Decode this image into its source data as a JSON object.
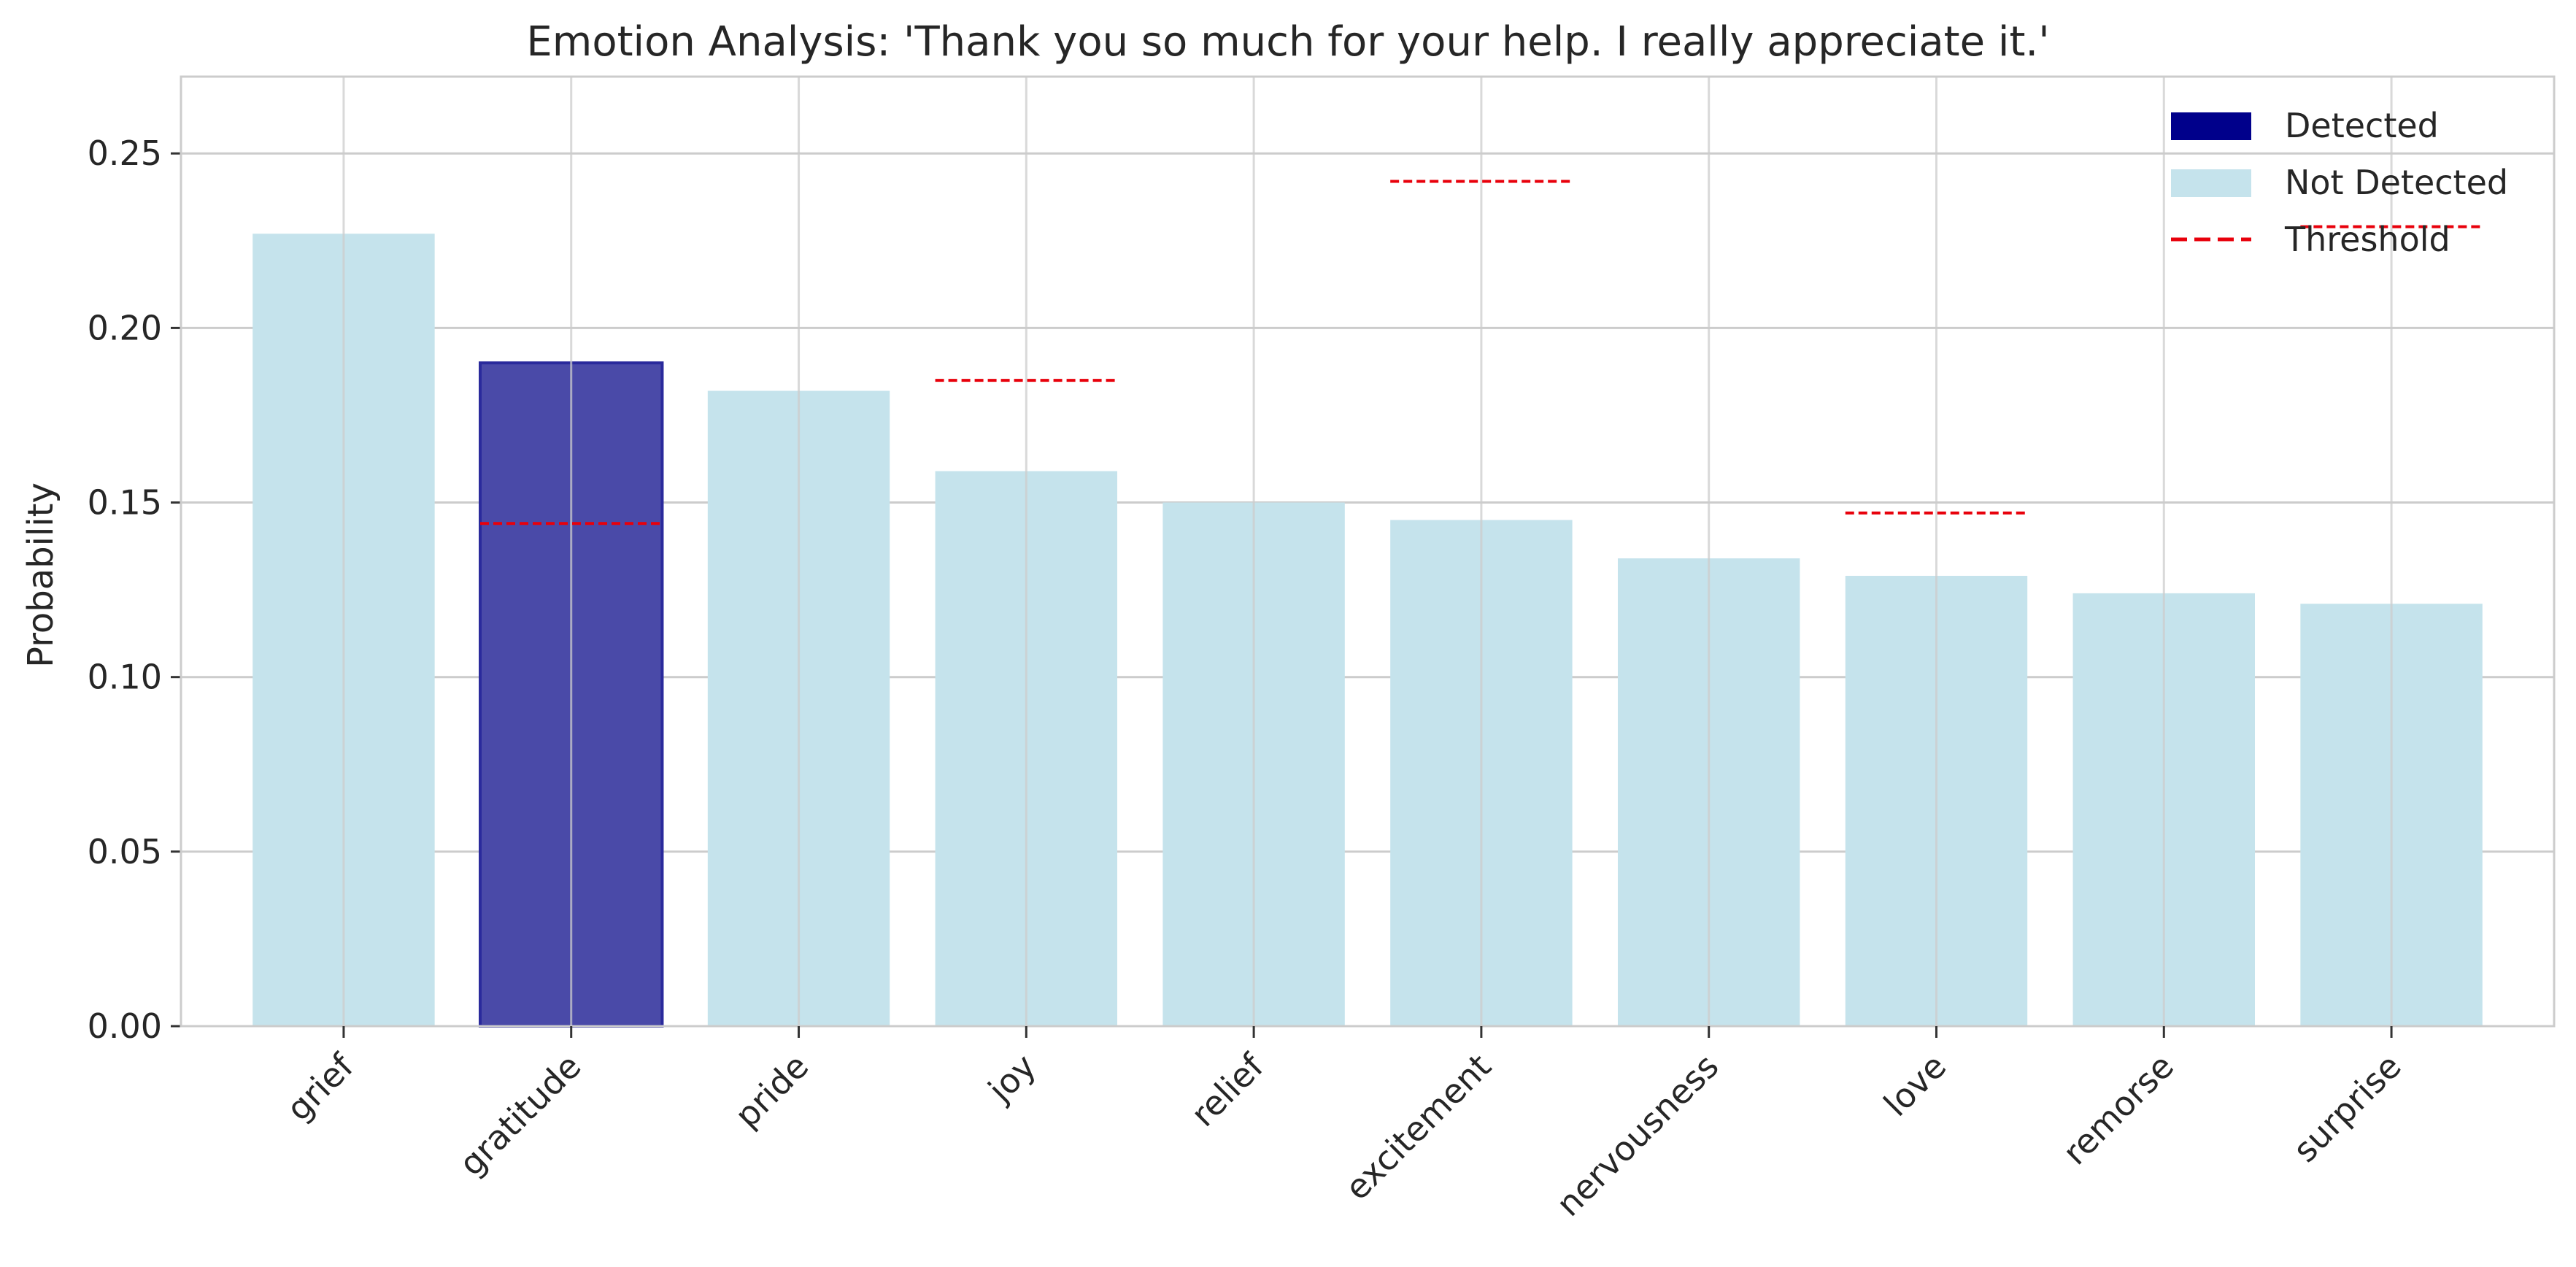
{
  "chart_data": {
    "type": "bar",
    "title": "Emotion Analysis: 'Thank you so much for your help. I really appreciate it.'",
    "xlabel": "",
    "ylabel": "Probability",
    "ylim": [
      0,
      0.272
    ],
    "yticks": [
      0.0,
      0.05,
      0.1,
      0.15,
      0.2,
      0.25
    ],
    "ytick_labels": [
      "0.00",
      "0.05",
      "0.10",
      "0.15",
      "0.20",
      "0.25"
    ],
    "grid": true,
    "legend_placement": "top-right",
    "categories": [
      "grief",
      "gratitude",
      "pride",
      "joy",
      "relief",
      "excitement",
      "nervousness",
      "love",
      "remorse",
      "surprise"
    ],
    "values": [
      0.227,
      0.19,
      0.182,
      0.159,
      0.15,
      0.145,
      0.134,
      0.129,
      0.124,
      0.121
    ],
    "detected": [
      false,
      true,
      false,
      false,
      false,
      false,
      false,
      false,
      false,
      false
    ],
    "thresholds": [
      null,
      0.144,
      null,
      0.185,
      null,
      0.242,
      null,
      0.147,
      null,
      0.229
    ],
    "legend": [
      {
        "label": "Detected",
        "kind": "patch",
        "color": "#00008b"
      },
      {
        "label": "Not Detected",
        "kind": "patch",
        "color": "#c5e3ec"
      },
      {
        "label": "Threshold",
        "kind": "dashed-line",
        "color": "#e8000b"
      }
    ],
    "colors": {
      "detected_fill": "#4a4aa8",
      "detected_edge": "#2a2a9c",
      "not_detected_fill": "#c5e3ec",
      "threshold": "#e8000b",
      "grid": "#cccccc",
      "axis": "#cccccc"
    }
  }
}
